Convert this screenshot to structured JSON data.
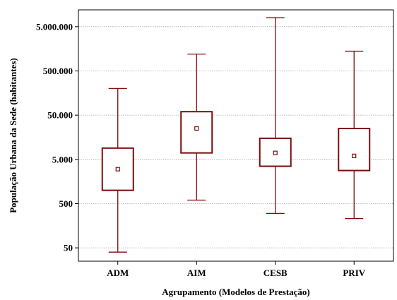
{
  "chart_data": {
    "type": "boxplot",
    "title": "",
    "xlabel": "Agrupamento (Modelos de Prestação)",
    "ylabel": "População Urbana da Sede (habitantes)",
    "y_scale": "log",
    "ylim": [
      25,
      12000000
    ],
    "y_ticks": [
      50,
      500,
      5000,
      50000,
      500000,
      5000000
    ],
    "y_tick_labels": [
      "50",
      "500",
      "5.000",
      "50.000",
      "500.000",
      "5.000.000"
    ],
    "grid": true,
    "categories": [
      "ADM",
      "AIM",
      "CESB",
      "PRIV"
    ],
    "boxes": [
      {
        "category": "ADM",
        "min": 40,
        "q1": 1000,
        "median": 3000,
        "q3": 9000,
        "max": 200000
      },
      {
        "category": "AIM",
        "min": 600,
        "q1": 7000,
        "median": 25000,
        "q3": 60000,
        "max": 1200000
      },
      {
        "category": "CESB",
        "min": 300,
        "q1": 3500,
        "median": 7000,
        "q3": 15000,
        "max": 8000000
      },
      {
        "category": "PRIV",
        "min": 230,
        "q1": 2800,
        "median": 6000,
        "q3": 25000,
        "max": 1400000
      }
    ],
    "colors": {
      "box": "#7a0c0c",
      "grid": "#a8a8a8",
      "axis": "#000000"
    }
  }
}
